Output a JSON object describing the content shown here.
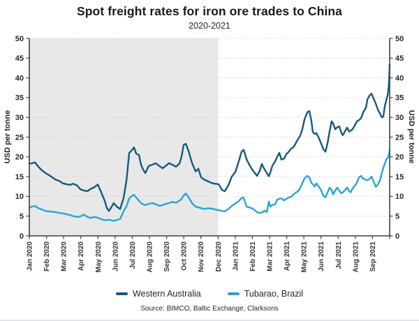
{
  "page": {
    "source_note": "Source: BIMCO, Baltic Exchange, Clarksons"
  },
  "chart_data": {
    "type": "line",
    "title": "Spot freight rates for iron ore trades to China",
    "subtitle": "2020-2021",
    "ylabel_left": "USD per tonne",
    "ylabel_right": "USD per tonne",
    "ylim": [
      0,
      50
    ],
    "y_ticks": [
      0,
      5,
      10,
      15,
      20,
      25,
      30,
      35,
      40,
      45,
      50
    ],
    "x_ticks": [
      "Jan 2020",
      "Feb 2020",
      "Mar 2020",
      "Apr 2020",
      "May 2020",
      "Jun 2020",
      "Jul 2020",
      "Aug 2020",
      "Sep 2020",
      "Oct 2020",
      "Nov 2020",
      "Dec 2020",
      "Jan 2021",
      "Feb 2021",
      "Mar 2021",
      "Apr 2021",
      "May 2021",
      "Jun 2021",
      "Jul 2021",
      "Aug 2021",
      "Sep 2021"
    ],
    "x_months_domain": [
      0,
      21
    ],
    "grid": "horizontal dashed",
    "legend_position": "bottom",
    "shaded_region": {
      "from_month": 0,
      "to_month": 11,
      "color": "#e8e8e8"
    },
    "colors": {
      "axis": "#3f3f3f",
      "grid": "#d8cbcb",
      "background": "#ffffff"
    },
    "series": [
      {
        "name": "Western Australia",
        "color": "#16597c",
        "points": [
          [
            0,
            18.3
          ],
          [
            0.16,
            18.4
          ],
          [
            0.33,
            18.6
          ],
          [
            0.53,
            17.5
          ],
          [
            0.73,
            16.6
          ],
          [
            0.94,
            15.9
          ],
          [
            1.14,
            15.4
          ],
          [
            1.34,
            14.8
          ],
          [
            1.55,
            14.2
          ],
          [
            1.75,
            13.9
          ],
          [
            1.95,
            13.3
          ],
          [
            2.16,
            13.1
          ],
          [
            2.36,
            12.9
          ],
          [
            2.56,
            13.2
          ],
          [
            2.77,
            12.8
          ],
          [
            2.97,
            11.8
          ],
          [
            3.17,
            11.5
          ],
          [
            3.38,
            11.3
          ],
          [
            3.58,
            11.9
          ],
          [
            3.78,
            12.3
          ],
          [
            3.99,
            13.0
          ],
          [
            4.19,
            11.0
          ],
          [
            4.4,
            8.8
          ],
          [
            4.52,
            7.0
          ],
          [
            4.64,
            6.3
          ],
          [
            4.8,
            7.4
          ],
          [
            4.92,
            8.3
          ],
          [
            5.09,
            7.4
          ],
          [
            5.29,
            6.8
          ],
          [
            5.49,
            9.5
          ],
          [
            5.66,
            14.0
          ],
          [
            5.82,
            21.0
          ],
          [
            5.94,
            21.5
          ],
          [
            6.1,
            22.4
          ],
          [
            6.23,
            20.8
          ],
          [
            6.39,
            20.5
          ],
          [
            6.51,
            18.0
          ],
          [
            6.63,
            16.8
          ],
          [
            6.76,
            15.9
          ],
          [
            6.96,
            17.7
          ],
          [
            7.16,
            18.0
          ],
          [
            7.37,
            18.4
          ],
          [
            7.57,
            17.7
          ],
          [
            7.77,
            17.1
          ],
          [
            7.94,
            17.7
          ],
          [
            8.14,
            18.4
          ],
          [
            8.34,
            18.0
          ],
          [
            8.55,
            17.5
          ],
          [
            8.75,
            18.3
          ],
          [
            8.87,
            20.0
          ],
          [
            8.99,
            23.0
          ],
          [
            9.12,
            23.3
          ],
          [
            9.28,
            21.5
          ],
          [
            9.48,
            18.5
          ],
          [
            9.69,
            16.3
          ],
          [
            9.85,
            17.0
          ],
          [
            10.01,
            14.8
          ],
          [
            10.21,
            14.2
          ],
          [
            10.42,
            13.8
          ],
          [
            10.62,
            13.4
          ],
          [
            10.82,
            13.2
          ],
          [
            11.03,
            13.1
          ],
          [
            11.23,
            11.6
          ],
          [
            11.39,
            11.3
          ],
          [
            11.6,
            12.8
          ],
          [
            11.8,
            15.0
          ],
          [
            12.01,
            16.2
          ],
          [
            12.21,
            18.9
          ],
          [
            12.37,
            21.3
          ],
          [
            12.49,
            21.8
          ],
          [
            12.66,
            19.4
          ],
          [
            12.82,
            18.0
          ],
          [
            13.02,
            16.6
          ],
          [
            13.27,
            15.2
          ],
          [
            13.43,
            16.5
          ],
          [
            13.55,
            18.2
          ],
          [
            13.71,
            16.8
          ],
          [
            13.84,
            15.9
          ],
          [
            13.96,
            15.1
          ],
          [
            14.04,
            16.0
          ],
          [
            14.16,
            17.7
          ],
          [
            14.33,
            18.9
          ],
          [
            14.45,
            20.1
          ],
          [
            14.57,
            21.0
          ],
          [
            14.69,
            19.3
          ],
          [
            14.85,
            19.6
          ],
          [
            14.98,
            20.7
          ],
          [
            15.1,
            21.2
          ],
          [
            15.26,
            22.1
          ],
          [
            15.38,
            22.4
          ],
          [
            15.51,
            23.3
          ],
          [
            15.67,
            24.6
          ],
          [
            15.79,
            25.4
          ],
          [
            15.91,
            27.0
          ],
          [
            16.04,
            29.5
          ],
          [
            16.2,
            31.3
          ],
          [
            16.32,
            31.6
          ],
          [
            16.44,
            29.0
          ],
          [
            16.52,
            26.3
          ],
          [
            16.64,
            25.8
          ],
          [
            16.73,
            26.0
          ],
          [
            16.85,
            25.0
          ],
          [
            17.01,
            23.3
          ],
          [
            17.13,
            22.0
          ],
          [
            17.26,
            21.3
          ],
          [
            17.38,
            23.5
          ],
          [
            17.5,
            26.5
          ],
          [
            17.62,
            29.0
          ],
          [
            17.7,
            28.5
          ],
          [
            17.83,
            27.0
          ],
          [
            17.95,
            27.5
          ],
          [
            18.07,
            27.7
          ],
          [
            18.19,
            26.0
          ],
          [
            18.27,
            25.5
          ],
          [
            18.4,
            26.5
          ],
          [
            18.52,
            27.4
          ],
          [
            18.64,
            26.4
          ],
          [
            18.72,
            26.6
          ],
          [
            18.84,
            27.0
          ],
          [
            18.97,
            28.0
          ],
          [
            19.09,
            29.0
          ],
          [
            19.21,
            29.3
          ],
          [
            19.33,
            29.8
          ],
          [
            19.45,
            31.2
          ],
          [
            19.62,
            32.5
          ],
          [
            19.7,
            34.5
          ],
          [
            19.82,
            35.5
          ],
          [
            19.94,
            36.0
          ],
          [
            20.06,
            34.8
          ],
          [
            20.19,
            33.5
          ],
          [
            20.31,
            32.0
          ],
          [
            20.43,
            31.0
          ],
          [
            20.55,
            30.0
          ],
          [
            20.63,
            30.2
          ],
          [
            20.71,
            32.7
          ],
          [
            20.8,
            34.3
          ],
          [
            20.88,
            35.6
          ],
          [
            20.94,
            37.5
          ],
          [
            20.98,
            40.5
          ],
          [
            21.0,
            43.4
          ]
        ]
      },
      {
        "name": "Tubarao, Brazil",
        "color": "#29a5d1",
        "points": [
          [
            0,
            7.2
          ],
          [
            0.16,
            7.4
          ],
          [
            0.33,
            7.6
          ],
          [
            0.53,
            7.0
          ],
          [
            0.73,
            6.7
          ],
          [
            0.94,
            6.3
          ],
          [
            1.14,
            6.2
          ],
          [
            1.34,
            6.1
          ],
          [
            1.55,
            6.0
          ],
          [
            1.75,
            5.8
          ],
          [
            1.95,
            5.7
          ],
          [
            2.16,
            5.5
          ],
          [
            2.36,
            5.3
          ],
          [
            2.56,
            5.0
          ],
          [
            2.77,
            4.8
          ],
          [
            2.97,
            4.9
          ],
          [
            3.17,
            5.4
          ],
          [
            3.38,
            4.8
          ],
          [
            3.58,
            4.5
          ],
          [
            3.78,
            4.8
          ],
          [
            3.99,
            4.6
          ],
          [
            4.19,
            4.2
          ],
          [
            4.4,
            4.0
          ],
          [
            4.52,
            4.0
          ],
          [
            4.64,
            4.1
          ],
          [
            4.8,
            3.9
          ],
          [
            4.92,
            3.8
          ],
          [
            5.09,
            4.0
          ],
          [
            5.29,
            4.3
          ],
          [
            5.49,
            6.2
          ],
          [
            5.66,
            7.5
          ],
          [
            5.82,
            9.5
          ],
          [
            5.94,
            10.0
          ],
          [
            6.1,
            10.4
          ],
          [
            6.23,
            9.7
          ],
          [
            6.39,
            8.9
          ],
          [
            6.51,
            8.3
          ],
          [
            6.63,
            8.0
          ],
          [
            6.76,
            7.8
          ],
          [
            6.96,
            8.1
          ],
          [
            7.16,
            8.3
          ],
          [
            7.37,
            8.0
          ],
          [
            7.57,
            7.6
          ],
          [
            7.77,
            7.8
          ],
          [
            7.94,
            8.1
          ],
          [
            8.14,
            8.3
          ],
          [
            8.34,
            8.6
          ],
          [
            8.55,
            8.4
          ],
          [
            8.75,
            8.9
          ],
          [
            8.87,
            9.3
          ],
          [
            8.99,
            10.2
          ],
          [
            9.12,
            10.7
          ],
          [
            9.28,
            9.8
          ],
          [
            9.48,
            8.3
          ],
          [
            9.69,
            7.4
          ],
          [
            9.85,
            7.2
          ],
          [
            10.01,
            7.0
          ],
          [
            10.21,
            6.8
          ],
          [
            10.42,
            7.0
          ],
          [
            10.62,
            6.9
          ],
          [
            10.82,
            6.7
          ],
          [
            11.03,
            6.5
          ],
          [
            11.23,
            6.3
          ],
          [
            11.39,
            6.2
          ],
          [
            11.6,
            6.8
          ],
          [
            11.8,
            7.6
          ],
          [
            12.01,
            8.2
          ],
          [
            12.21,
            8.8
          ],
          [
            12.37,
            9.6
          ],
          [
            12.49,
            9.7
          ],
          [
            12.66,
            7.4
          ],
          [
            12.82,
            7.2
          ],
          [
            13.02,
            6.9
          ],
          [
            13.27,
            6.0
          ],
          [
            13.43,
            5.8
          ],
          [
            13.55,
            5.9
          ],
          [
            13.71,
            6.4
          ],
          [
            13.84,
            6.0
          ],
          [
            13.96,
            8.7
          ],
          [
            14.04,
            7.4
          ],
          [
            14.16,
            7.8
          ],
          [
            14.33,
            8.0
          ],
          [
            14.45,
            9.2
          ],
          [
            14.57,
            9.4
          ],
          [
            14.69,
            9.5
          ],
          [
            14.85,
            9.0
          ],
          [
            14.98,
            9.4
          ],
          [
            15.1,
            9.7
          ],
          [
            15.26,
            9.9
          ],
          [
            15.38,
            10.4
          ],
          [
            15.51,
            10.9
          ],
          [
            15.67,
            11.3
          ],
          [
            15.79,
            12.2
          ],
          [
            15.91,
            13.3
          ],
          [
            16.04,
            14.6
          ],
          [
            16.2,
            15.2
          ],
          [
            16.32,
            14.8
          ],
          [
            16.44,
            13.4
          ],
          [
            16.52,
            13.1
          ],
          [
            16.64,
            12.5
          ],
          [
            16.73,
            13.3
          ],
          [
            16.85,
            12.6
          ],
          [
            17.01,
            11.5
          ],
          [
            17.13,
            10.2
          ],
          [
            17.26,
            9.8
          ],
          [
            17.38,
            11.0
          ],
          [
            17.5,
            12.2
          ],
          [
            17.62,
            11.6
          ],
          [
            17.7,
            10.5
          ],
          [
            17.83,
            11.5
          ],
          [
            17.95,
            12.2
          ],
          [
            18.07,
            11.4
          ],
          [
            18.19,
            10.8
          ],
          [
            18.27,
            11.0
          ],
          [
            18.4,
            11.6
          ],
          [
            18.52,
            12.2
          ],
          [
            18.64,
            11.3
          ],
          [
            18.72,
            11.0
          ],
          [
            18.84,
            12.0
          ],
          [
            18.97,
            12.7
          ],
          [
            19.09,
            13.5
          ],
          [
            19.21,
            14.8
          ],
          [
            19.33,
            15.2
          ],
          [
            19.45,
            14.5
          ],
          [
            19.62,
            14.2
          ],
          [
            19.7,
            14.1
          ],
          [
            19.82,
            14.4
          ],
          [
            19.94,
            15.0
          ],
          [
            20.06,
            13.8
          ],
          [
            20.19,
            12.4
          ],
          [
            20.31,
            13.0
          ],
          [
            20.43,
            14.0
          ],
          [
            20.55,
            16.0
          ],
          [
            20.63,
            17.2
          ],
          [
            20.71,
            18.2
          ],
          [
            20.8,
            19.3
          ],
          [
            20.88,
            19.8
          ],
          [
            20.94,
            20.3
          ],
          [
            20.98,
            21.0
          ],
          [
            21.0,
            21.8
          ]
        ]
      }
    ]
  }
}
